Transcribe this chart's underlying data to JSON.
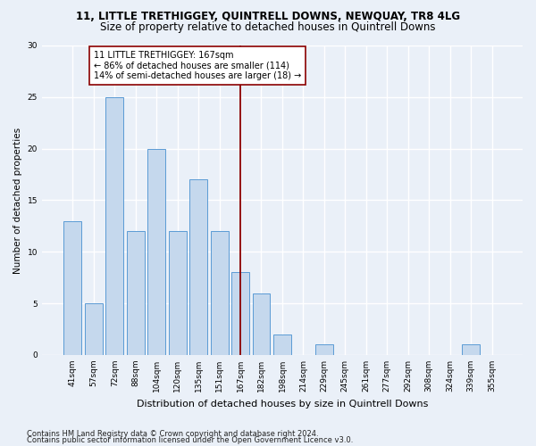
{
  "title1": "11, LITTLE TRETHIGGEY, QUINTRELL DOWNS, NEWQUAY, TR8 4LG",
  "title2": "Size of property relative to detached houses in Quintrell Downs",
  "xlabel": "Distribution of detached houses by size in Quintrell Downs",
  "ylabel": "Number of detached properties",
  "categories": [
    "41sqm",
    "57sqm",
    "72sqm",
    "88sqm",
    "104sqm",
    "120sqm",
    "135sqm",
    "151sqm",
    "167sqm",
    "182sqm",
    "198sqm",
    "214sqm",
    "229sqm",
    "245sqm",
    "261sqm",
    "277sqm",
    "292sqm",
    "308sqm",
    "324sqm",
    "339sqm",
    "355sqm"
  ],
  "values": [
    13,
    5,
    25,
    12,
    20,
    12,
    17,
    12,
    8,
    6,
    2,
    0,
    1,
    0,
    0,
    0,
    0,
    0,
    0,
    1,
    0
  ],
  "bar_color": "#c5d8ed",
  "bar_edge_color": "#5b9bd5",
  "vline_x": 8,
  "vline_color": "#8b0000",
  "annotation_text": "11 LITTLE TRETHIGGEY: 167sqm\n← 86% of detached houses are smaller (114)\n14% of semi-detached houses are larger (18) →",
  "annotation_box_color": "#ffffff",
  "annotation_box_edge": "#8b0000",
  "ylim": [
    0,
    30
  ],
  "yticks": [
    0,
    5,
    10,
    15,
    20,
    25,
    30
  ],
  "footer1": "Contains HM Land Registry data © Crown copyright and database right 2024.",
  "footer2": "Contains public sector information licensed under the Open Government Licence v3.0.",
  "bg_color": "#eaf0f8",
  "grid_color": "#ffffff",
  "title1_fontsize": 8.5,
  "title2_fontsize": 8.5,
  "ylabel_fontsize": 7.5,
  "xlabel_fontsize": 8.0,
  "tick_fontsize": 6.5,
  "annot_fontsize": 7.0,
  "footer_fontsize": 6.0
}
